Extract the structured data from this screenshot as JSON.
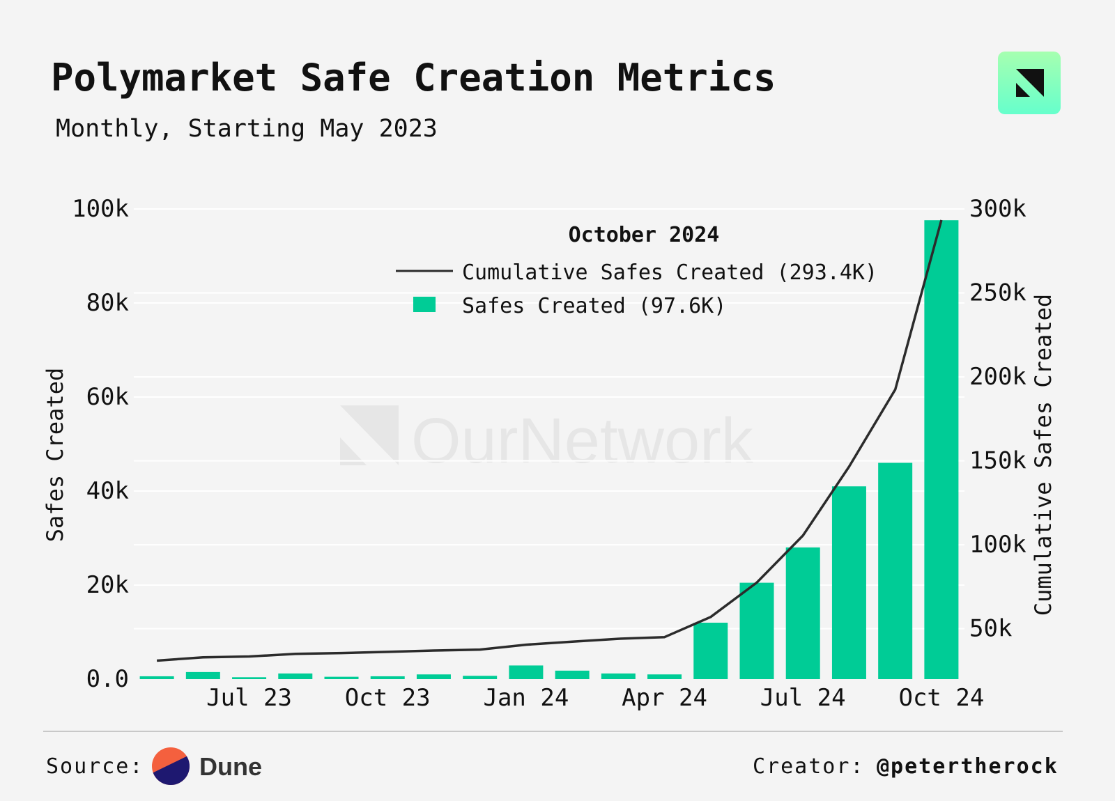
{
  "title": "Polymarket Safe Creation Metrics",
  "subtitle": "Monthly, Starting May 2023",
  "watermark": "OurNetwork",
  "footer": {
    "source_label": "Source:",
    "source_name": "Dune",
    "creator_label": "Creator:",
    "creator_handle": "@petertherock"
  },
  "colors": {
    "bar": "#00cc96",
    "line": "#2b2b2b",
    "logo_top": "#a6ffb0",
    "logo_bottom": "#66ffcc",
    "dune_orange": "#f4603e",
    "dune_navy": "#1e1870"
  },
  "chart_data": {
    "type": "bar",
    "title": "Polymarket Safe Creation Metrics",
    "subtitle": "Monthly, Starting May 2023",
    "months": [
      "May 23",
      "Jun 23",
      "Jul 23",
      "Aug 23",
      "Sep 23",
      "Oct 23",
      "Nov 23",
      "Dec 23",
      "Jan 24",
      "Feb 24",
      "Mar 24",
      "Apr 24",
      "May 24",
      "Jun 24",
      "Jul 24",
      "Aug 24",
      "Sep 24",
      "Oct 24"
    ],
    "x_tick_labels": [
      "Jul 23",
      "Oct 23",
      "Jan 24",
      "Apr 24",
      "Jul 24",
      "Oct 24"
    ],
    "x_tick_index": [
      2,
      5,
      8,
      11,
      14,
      17
    ],
    "series": [
      {
        "name": "Safes Created",
        "type": "bar",
        "axis": "left",
        "values": [
          600,
          1500,
          400,
          1200,
          500,
          600,
          1000,
          700,
          2900,
          1800,
          1200,
          1000,
          12000,
          20500,
          28000,
          41000,
          46000,
          97600
        ]
      },
      {
        "name": "Cumulative Safes Created",
        "type": "line",
        "axis": "right",
        "values": [
          31000,
          33000,
          33500,
          35000,
          35500,
          36200,
          37000,
          37600,
          40500,
          42300,
          44000,
          45000,
          57000,
          77500,
          105500,
          146500,
          192500,
          293400
        ]
      }
    ],
    "y_left": {
      "label": "Safes Created",
      "range": [
        0,
        100000
      ],
      "ticks": [
        0,
        20000,
        40000,
        60000,
        80000,
        100000
      ],
      "tick_labels": [
        "0.0",
        "20k",
        "40k",
        "60k",
        "80k",
        "100k"
      ]
    },
    "y_right": {
      "label": "Cumulative Safes Created",
      "range": [
        20000,
        300000
      ],
      "ticks": [
        50000,
        100000,
        150000,
        200000,
        250000,
        300000
      ],
      "tick_labels": [
        "50k",
        "100k",
        "150k",
        "200k",
        "250k",
        "300k"
      ]
    },
    "legend": {
      "title": "October 2024",
      "placement": "top-center",
      "entries": [
        {
          "label": "Cumulative Safes Created (293.4K)",
          "kind": "line"
        },
        {
          "label": "Safes Created (97.6K)",
          "kind": "bar"
        }
      ]
    }
  }
}
